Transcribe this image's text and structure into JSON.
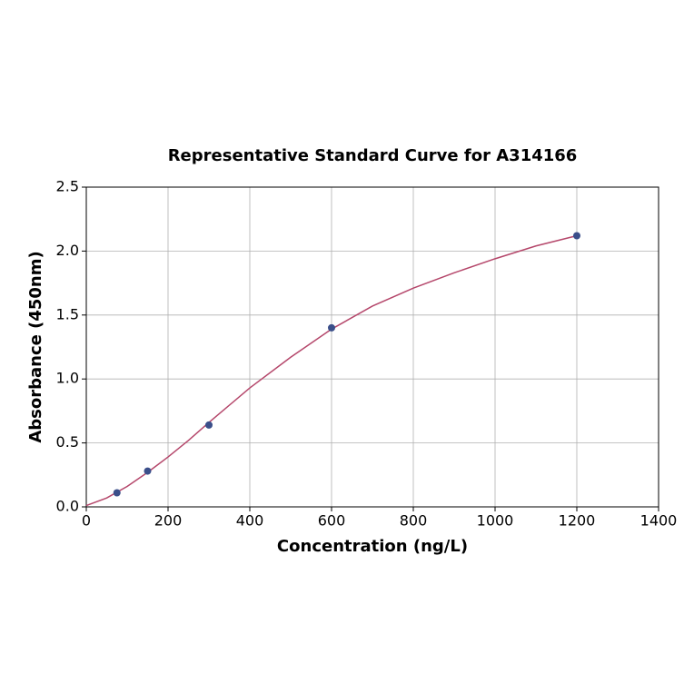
{
  "chart_data": {
    "type": "scatter",
    "title": "Representative Standard Curve for A314166",
    "xlabel": "Concentration (ng/L)",
    "ylabel": "Absorbance (450nm)",
    "xlim": [
      0,
      1400
    ],
    "xticks": [
      0,
      200,
      400,
      600,
      800,
      1000,
      1200,
      1400
    ],
    "ylim": [
      0,
      2.5
    ],
    "yticks": [
      {
        "value": 0,
        "label": "0.0"
      },
      0.5,
      {
        "value": 1,
        "label": "1.0"
      },
      1.5,
      {
        "value": 2,
        "label": "2.0"
      },
      2.5
    ],
    "grid": true,
    "series": [
      {
        "type": "scatter",
        "color": "#3b4f8a",
        "x": [
          75,
          150,
          300,
          600,
          1200
        ],
        "values": [
          0.11,
          0.28,
          0.64,
          1.4,
          2.12
        ]
      },
      {
        "type": "line",
        "color": "#b5476b",
        "x": [
          0,
          50,
          100,
          150,
          200,
          250,
          300,
          400,
          500,
          600,
          700,
          800,
          900,
          1000,
          1100,
          1200
        ],
        "values": [
          0.01,
          0.07,
          0.16,
          0.27,
          0.39,
          0.52,
          0.66,
          0.93,
          1.17,
          1.39,
          1.57,
          1.71,
          1.83,
          1.94,
          2.04,
          2.12
        ]
      }
    ]
  }
}
